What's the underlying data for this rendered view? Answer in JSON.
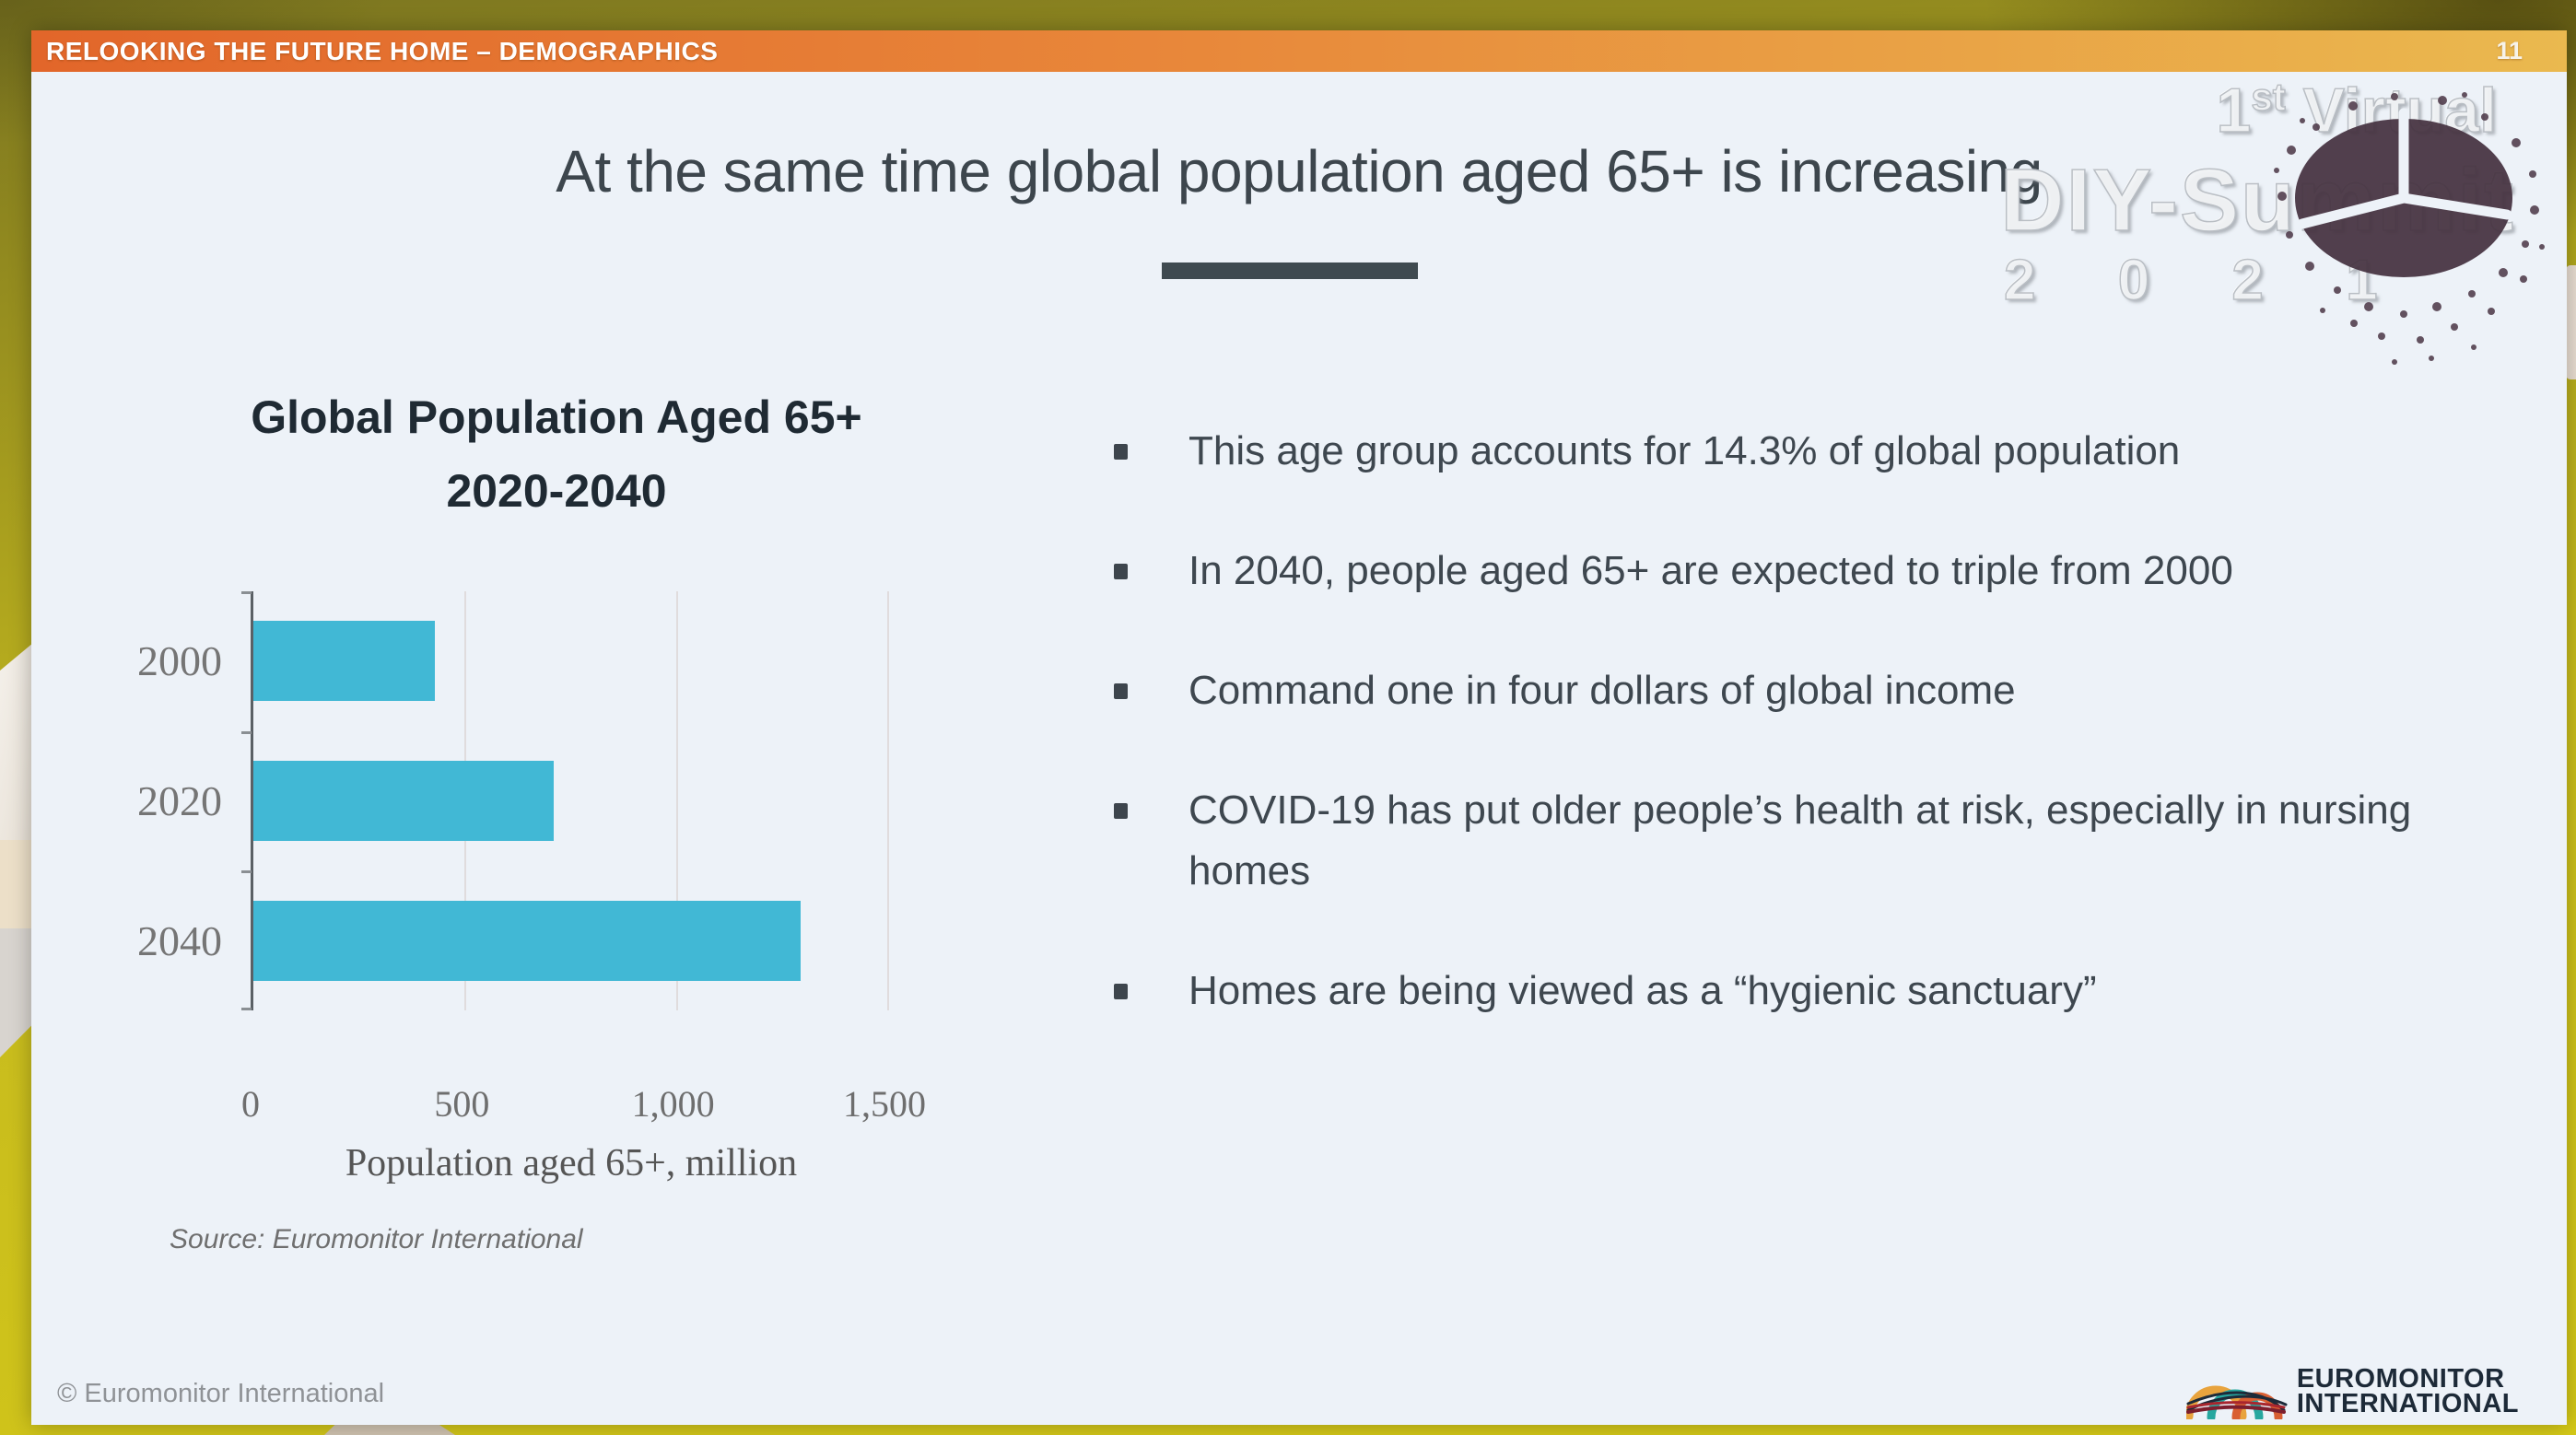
{
  "header": {
    "title": "RELOOKING THE FUTURE HOME – DEMOGRAPHICS",
    "page_number": "11"
  },
  "slide": {
    "title": "At the same time global population aged 65+ is increasing",
    "footer_copyright": "© Euromonitor International"
  },
  "watermark": {
    "line1_num": "1",
    "line1_sup": "st",
    "line1_rest": " Virtual",
    "line2": "DIY-Summit",
    "line3": "2 0 2 1",
    "globe_icon": "crowd-pie-globe-image"
  },
  "bullets": {
    "items": [
      "This age group accounts for 14.3% of global population",
      "In 2040, people aged 65+ are expected to triple from 2000",
      "Command one in four dollars of global income",
      "COVID-19 has put older people’s health at risk, especially in nursing homes",
      "Homes are being viewed as a “hygienic sanctuary”"
    ]
  },
  "chart_data": {
    "type": "bar",
    "orientation": "horizontal",
    "title_line1": "Global Population Aged 65+",
    "title_line2": "2020-2040",
    "categories": [
      "2000",
      "2020",
      "2040"
    ],
    "values": [
      430,
      710,
      1295
    ],
    "xlabel": "Population aged 65+, million",
    "ylabel": "",
    "xlim": [
      0,
      1500
    ],
    "xtick_values": [
      0,
      500,
      1000,
      1500
    ],
    "xtick_labels": [
      "0",
      "500",
      "1,000",
      "1,500"
    ],
    "grid": true,
    "legend": false,
    "source": "Source: Euromonitor International",
    "bar_color": "#41b8d5"
  },
  "logo": {
    "line1": "EUROMONITOR",
    "line2": "INTERNATIONAL",
    "icon": "euromonitor-arches-icon"
  },
  "colors": {
    "header_gradient_left": "#e2662a",
    "header_gradient_right": "#eab94f",
    "slide_background": "#edf2f8",
    "desktop_yellow": "#cdc11c",
    "title_text": "#3d464d",
    "bullet_text": "#3e474f",
    "bar_teal": "#41b8d5",
    "logo_navy": "#1d2a38"
  }
}
